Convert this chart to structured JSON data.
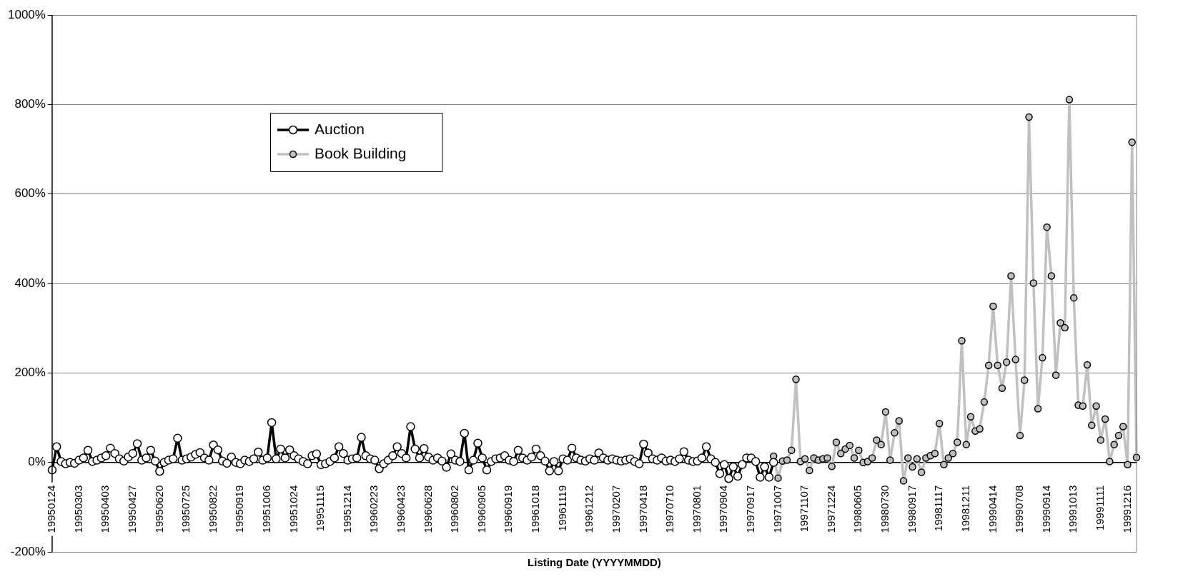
{
  "chart_data": {
    "type": "line",
    "xlabel": "Listing Date (YYYYMMDD)",
    "categories": [
      "19950124",
      null,
      null,
      null,
      null,
      null,
      "19950303",
      null,
      null,
      null,
      null,
      null,
      "19950403",
      null,
      null,
      null,
      null,
      null,
      "19950427",
      null,
      null,
      null,
      null,
      null,
      "19950620",
      null,
      null,
      null,
      null,
      null,
      "19950725",
      null,
      null,
      null,
      null,
      null,
      "19950822",
      null,
      null,
      null,
      null,
      null,
      "19950919",
      null,
      null,
      null,
      null,
      null,
      "19951006",
      null,
      null,
      null,
      null,
      null,
      "19951024",
      null,
      null,
      null,
      null,
      null,
      "19951115",
      null,
      null,
      null,
      null,
      null,
      "19951214",
      null,
      null,
      null,
      null,
      null,
      "19960223",
      null,
      null,
      null,
      null,
      null,
      "19960423",
      null,
      null,
      null,
      null,
      null,
      "19960628",
      null,
      null,
      null,
      null,
      null,
      "19960802",
      null,
      null,
      null,
      null,
      null,
      "19960905",
      null,
      null,
      null,
      null,
      null,
      "19960919",
      null,
      null,
      null,
      null,
      null,
      "19961018",
      null,
      null,
      null,
      null,
      null,
      "19961119",
      null,
      null,
      null,
      null,
      null,
      "19961212",
      null,
      null,
      null,
      null,
      null,
      "19970207",
      null,
      null,
      null,
      null,
      null,
      "19970418",
      null,
      null,
      null,
      null,
      null,
      "19970710",
      null,
      null,
      null,
      null,
      null,
      "19970801",
      null,
      null,
      null,
      null,
      null,
      "19970904",
      null,
      null,
      null,
      null,
      null,
      "19970917",
      null,
      null,
      null,
      null,
      null,
      "19971007",
      null,
      null,
      null,
      null,
      null,
      "19971107",
      null,
      null,
      null,
      null,
      null,
      "19971224",
      null,
      null,
      null,
      null,
      null,
      "19980605",
      null,
      null,
      null,
      null,
      null,
      "19980730",
      null,
      null,
      null,
      null,
      null,
      "19980917",
      null,
      null,
      null,
      null,
      null,
      "19981117",
      null,
      null,
      null,
      null,
      null,
      "19981211",
      null,
      null,
      null,
      null,
      null,
      "19990414",
      null,
      null,
      null,
      null,
      null,
      "19990708",
      null,
      null,
      null,
      null,
      null,
      "19990914",
      null,
      null,
      null,
      null,
      null,
      "19991013",
      null,
      null,
      null,
      null,
      null,
      "19991111",
      null,
      null,
      null,
      null,
      null,
      "19991216",
      null,
      null
    ],
    "series": [
      {
        "name": "Auction",
        "color": "#000000",
        "values": [
          -17,
          35,
          2,
          -3,
          0,
          -2,
          5,
          10,
          27,
          2,
          5,
          10,
          15,
          32,
          20,
          8,
          3,
          12,
          20,
          42,
          5,
          10,
          27,
          3,
          -20,
          0,
          5,
          8,
          54,
          5,
          8,
          12,
          18,
          22,
          10,
          5,
          39,
          28,
          3,
          -2,
          12,
          0,
          -3,
          5,
          2,
          8,
          23,
          5,
          10,
          89,
          8,
          30,
          10,
          28,
          15,
          8,
          2,
          -3,
          15,
          19,
          -5,
          -3,
          2,
          10,
          35,
          20,
          5,
          8,
          10,
          56,
          15,
          8,
          5,
          -14,
          -3,
          5,
          15,
          35,
          20,
          10,
          80,
          30,
          10,
          31,
          12,
          5,
          10,
          3,
          -11,
          19,
          5,
          2,
          65,
          -17,
          5,
          43,
          10,
          -17,
          2,
          8,
          10,
          15,
          5,
          2,
          27,
          10,
          5,
          12,
          30,
          15,
          3,
          -19,
          2,
          -19,
          8,
          5,
          32,
          10,
          5,
          3,
          8,
          5,
          21,
          10,
          5,
          8,
          5,
          3,
          5,
          8,
          2,
          -3,
          41,
          21,
          8,
          5,
          10,
          3,
          5,
          2,
          8,
          24,
          5,
          2,
          3,
          10,
          35,
          8,
          0,
          -25,
          -5,
          -36,
          -10,
          -31,
          -5,
          10,
          10,
          2,
          -33,
          -10,
          -33,
          0,
          null,
          null,
          null,
          null,
          null,
          null,
          null,
          null,
          null,
          null,
          null,
          null,
          null,
          null,
          null,
          null,
          null,
          null,
          null,
          null,
          null,
          null,
          null,
          null,
          null,
          null,
          null,
          null,
          null,
          null,
          null,
          null,
          null,
          null,
          null,
          null,
          null,
          null,
          null,
          null,
          null,
          null,
          null,
          null,
          null,
          null,
          null,
          null,
          null,
          null,
          null,
          null,
          null,
          null,
          null,
          null,
          null,
          null,
          null,
          null,
          null,
          null,
          null,
          null,
          null,
          null,
          null,
          null,
          null,
          null,
          null,
          null,
          null,
          null,
          null,
          null,
          null,
          null,
          null,
          null,
          null
        ]
      },
      {
        "name": "Book Building",
        "color": "#c0c0c0",
        "values": [
          null,
          null,
          null,
          null,
          null,
          null,
          null,
          null,
          null,
          null,
          null,
          null,
          null,
          null,
          null,
          null,
          null,
          null,
          null,
          null,
          null,
          null,
          null,
          null,
          null,
          null,
          null,
          null,
          null,
          null,
          null,
          null,
          null,
          null,
          null,
          null,
          null,
          null,
          null,
          null,
          null,
          null,
          null,
          null,
          null,
          null,
          null,
          null,
          null,
          null,
          null,
          null,
          null,
          null,
          null,
          null,
          null,
          null,
          null,
          null,
          null,
          null,
          null,
          null,
          null,
          null,
          null,
          null,
          null,
          null,
          null,
          null,
          null,
          null,
          null,
          null,
          null,
          null,
          null,
          null,
          null,
          null,
          null,
          null,
          null,
          null,
          null,
          null,
          null,
          null,
          null,
          null,
          null,
          null,
          null,
          null,
          null,
          null,
          null,
          null,
          null,
          null,
          null,
          null,
          null,
          null,
          null,
          null,
          null,
          null,
          null,
          null,
          null,
          null,
          null,
          null,
          null,
          null,
          null,
          null,
          null,
          null,
          null,
          null,
          null,
          null,
          null,
          null,
          null,
          null,
          null,
          null,
          null,
          null,
          null,
          null,
          null,
          null,
          null,
          null,
          null,
          null,
          null,
          null,
          null,
          null,
          null,
          null,
          null,
          null,
          null,
          null,
          null,
          null,
          null,
          null,
          null,
          null,
          null,
          null,
          null,
          14,
          -35,
          3,
          5,
          27,
          186,
          2,
          8,
          -18,
          10,
          5,
          8,
          10,
          -9,
          45,
          20,
          30,
          38,
          10,
          27,
          0,
          2,
          10,
          50,
          40,
          113,
          5,
          66,
          93,
          -41,
          10,
          -10,
          8,
          -22,
          10,
          15,
          20,
          87,
          -5,
          10,
          20,
          45,
          272,
          40,
          102,
          70,
          75,
          135,
          217,
          349,
          217,
          166,
          224,
          417,
          230,
          60,
          184,
          772,
          401,
          120,
          234,
          526,
          417,
          195,
          312,
          301,
          811,
          368,
          128,
          126,
          218,
          83,
          126,
          50,
          97,
          2,
          40,
          60,
          80,
          -5,
          716,
          11
        ]
      }
    ],
    "ylim": [
      -200,
      1000
    ],
    "yticks": [
      {
        "value": -200,
        "label": "-200%"
      },
      {
        "value": 0,
        "label": "0%"
      },
      {
        "value": 200,
        "label": "200%"
      },
      {
        "value": 400,
        "label": "400%"
      },
      {
        "value": 600,
        "label": "600%"
      },
      {
        "value": 800,
        "label": "800%"
      },
      {
        "value": 1000,
        "label": "1000%"
      }
    ],
    "grid": "y",
    "legend": "top left",
    "marker": "circle",
    "line_style": "solid"
  }
}
